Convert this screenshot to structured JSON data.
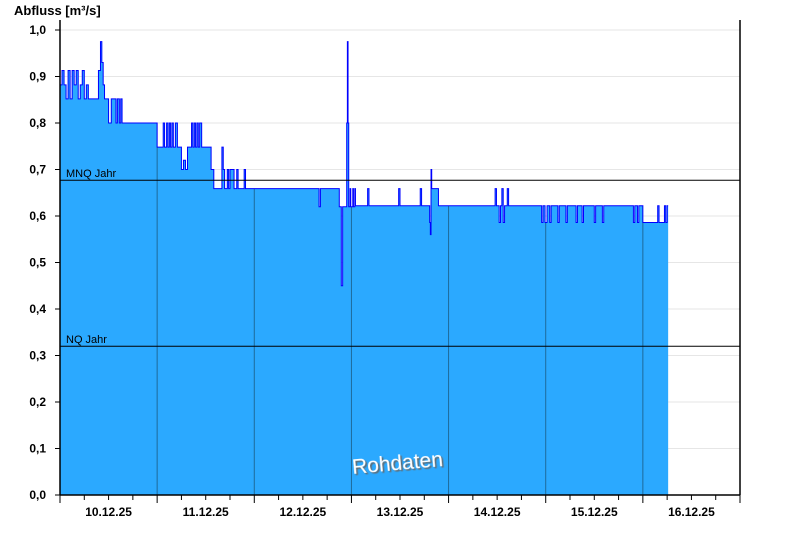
{
  "chart_data": {
    "type": "area",
    "ylabel": "Abfluss [m³/s]",
    "ylim": [
      0,
      1.0
    ],
    "yticks": [
      "0,0",
      "0,1",
      "0,2",
      "0,3",
      "0,4",
      "0,5",
      "0,6",
      "0,7",
      "0,8",
      "0,9",
      "1,0"
    ],
    "xlim": [
      "10.12.25 00:00",
      "17.12.25 00:00"
    ],
    "xticks": [
      "10.12.25",
      "11.12.25",
      "12.12.25",
      "13.12.25",
      "14.12.25",
      "15.12.25",
      "16.12.25"
    ],
    "grid": true,
    "step": true,
    "colors": {
      "fill": "#2ba9ff",
      "line": "#0000ff",
      "day_lines": "#1e6a9a",
      "grid": "#e6e6e6"
    },
    "reference_lines": [
      {
        "label": "MNQ Jahr",
        "value": 0.677
      },
      {
        "label": "NQ Jahr",
        "value": 0.32
      }
    ],
    "watermark": "Rohdaten",
    "end": "16.12.25 06:15",
    "points": [
      [
        "10.12.25 00:00",
        0.882
      ],
      [
        "10.12.25 00:30",
        0.913
      ],
      [
        "10.12.25 01:00",
        0.882
      ],
      [
        "10.12.25 01:30",
        0.852
      ],
      [
        "10.12.25 02:00",
        0.913
      ],
      [
        "10.12.25 02:30",
        0.852
      ],
      [
        "10.12.25 03:00",
        0.913
      ],
      [
        "10.12.25 03:30",
        0.882
      ],
      [
        "10.12.25 04:00",
        0.913
      ],
      [
        "10.12.25 04:30",
        0.852
      ],
      [
        "10.12.25 05:00",
        0.882
      ],
      [
        "10.12.25 05:30",
        0.913
      ],
      [
        "10.12.25 06:00",
        0.852
      ],
      [
        "10.12.25 06:30",
        0.882
      ],
      [
        "10.12.25 07:00",
        0.852
      ],
      [
        "10.12.25 09:30",
        0.913
      ],
      [
        "10.12.25 10:00",
        0.975
      ],
      [
        "10.12.25 10:20",
        0.93
      ],
      [
        "10.12.25 10:40",
        0.882
      ],
      [
        "10.12.25 11:00",
        0.852
      ],
      [
        "10.12.25 12:00",
        0.8
      ],
      [
        "10.12.25 12:40",
        0.852
      ],
      [
        "10.12.25 13:50",
        0.8
      ],
      [
        "10.12.25 14:10",
        0.852
      ],
      [
        "10.12.25 14:40",
        0.8
      ],
      [
        "10.12.25 15:00",
        0.852
      ],
      [
        "10.12.25 15:20",
        0.8
      ],
      [
        "11.12.25 00:00",
        0.748
      ],
      [
        "11.12.25 01:30",
        0.8
      ],
      [
        "11.12.25 01:50",
        0.748
      ],
      [
        "11.12.25 02:20",
        0.8
      ],
      [
        "11.12.25 02:40",
        0.748
      ],
      [
        "11.12.25 03:00",
        0.8
      ],
      [
        "11.12.25 03:20",
        0.748
      ],
      [
        "11.12.25 03:40",
        0.8
      ],
      [
        "11.12.25 04:00",
        0.748
      ],
      [
        "11.12.25 04:30",
        0.8
      ],
      [
        "11.12.25 05:00",
        0.748
      ],
      [
        "11.12.25 06:00",
        0.7
      ],
      [
        "11.12.25 06:30",
        0.72
      ],
      [
        "11.12.25 07:00",
        0.7
      ],
      [
        "11.12.25 07:30",
        0.748
      ],
      [
        "11.12.25 08:30",
        0.8
      ],
      [
        "11.12.25 08:50",
        0.748
      ],
      [
        "11.12.25 09:10",
        0.8
      ],
      [
        "11.12.25 09:30",
        0.748
      ],
      [
        "11.12.25 09:50",
        0.8
      ],
      [
        "11.12.25 10:10",
        0.748
      ],
      [
        "11.12.25 10:30",
        0.8
      ],
      [
        "11.12.25 11:00",
        0.748
      ],
      [
        "11.12.25 13:20",
        0.7
      ],
      [
        "11.12.25 14:00",
        0.659
      ],
      [
        "11.12.25 16:00",
        0.748
      ],
      [
        "11.12.25 16:20",
        0.7
      ],
      [
        "11.12.25 16:40",
        0.659
      ],
      [
        "11.12.25 17:20",
        0.7
      ],
      [
        "11.12.25 17:40",
        0.659
      ],
      [
        "11.12.25 18:00",
        0.7
      ],
      [
        "11.12.25 19:00",
        0.659
      ],
      [
        "11.12.25 19:40",
        0.7
      ],
      [
        "11.12.25 20:00",
        0.659
      ],
      [
        "11.12.25 21:30",
        0.7
      ],
      [
        "11.12.25 21:50",
        0.659
      ],
      [
        "12.12.25 16:00",
        0.62
      ],
      [
        "12.12.25 16:20",
        0.659
      ],
      [
        "12.12.25 21:00",
        0.62
      ],
      [
        "12.12.25 21:30",
        0.45
      ],
      [
        "12.12.25 21:50",
        0.62
      ],
      [
        "12.12.25 22:50",
        0.8
      ],
      [
        "12.12.25 23:00",
        0.975
      ],
      [
        "12.12.25 23:10",
        0.8
      ],
      [
        "12.12.25 23:20",
        0.62
      ],
      [
        "12.12.25 23:40",
        0.659
      ],
      [
        "12.12.25 23:50",
        0.62
      ],
      [
        "13.12.25 00:20",
        0.659
      ],
      [
        "13.12.25 00:30",
        0.62
      ],
      [
        "13.12.25 00:50",
        0.659
      ],
      [
        "13.12.25 01:00",
        0.622
      ],
      [
        "13.12.25 04:00",
        0.659
      ],
      [
        "13.12.25 04:20",
        0.622
      ],
      [
        "13.12.25 11:40",
        0.659
      ],
      [
        "13.12.25 12:00",
        0.622
      ],
      [
        "13.12.25 17:00",
        0.659
      ],
      [
        "13.12.25 17:20",
        0.622
      ],
      [
        "13.12.25 19:20",
        0.586
      ],
      [
        "13.12.25 19:30",
        0.56
      ],
      [
        "13.12.25 19:40",
        0.7
      ],
      [
        "13.12.25 19:50",
        0.659
      ],
      [
        "13.12.25 21:30",
        0.622
      ],
      [
        "14.12.25 11:30",
        0.659
      ],
      [
        "14.12.25 11:50",
        0.622
      ],
      [
        "14.12.25 12:30",
        0.586
      ],
      [
        "14.12.25 12:50",
        0.622
      ],
      [
        "14.12.25 13:10",
        0.659
      ],
      [
        "14.12.25 13:30",
        0.586
      ],
      [
        "14.12.25 13:50",
        0.622
      ],
      [
        "14.12.25 14:30",
        0.659
      ],
      [
        "14.12.25 14:50",
        0.622
      ],
      [
        "14.12.25 23:00",
        0.586
      ],
      [
        "14.12.25 23:20",
        0.622
      ],
      [
        "14.12.25 23:50",
        0.586
      ],
      [
        "15.12.25 00:20",
        0.622
      ],
      [
        "15.12.25 01:00",
        0.586
      ],
      [
        "15.12.25 01:20",
        0.622
      ],
      [
        "15.12.25 03:00",
        0.586
      ],
      [
        "15.12.25 03:20",
        0.622
      ],
      [
        "15.12.25 05:00",
        0.586
      ],
      [
        "15.12.25 05:20",
        0.622
      ],
      [
        "15.12.25 07:30",
        0.586
      ],
      [
        "15.12.25 07:50",
        0.622
      ],
      [
        "15.12.25 09:00",
        0.586
      ],
      [
        "15.12.25 09:20",
        0.622
      ],
      [
        "15.12.25 12:00",
        0.586
      ],
      [
        "15.12.25 12:20",
        0.622
      ],
      [
        "15.12.25 14:00",
        0.586
      ],
      [
        "15.12.25 14:20",
        0.622
      ],
      [
        "15.12.25 21:40",
        0.586
      ],
      [
        "15.12.25 22:00",
        0.622
      ],
      [
        "15.12.25 22:40",
        0.586
      ],
      [
        "15.12.25 23:00",
        0.622
      ],
      [
        "16.12.25 00:00",
        0.586
      ],
      [
        "16.12.25 03:40",
        0.622
      ],
      [
        "16.12.25 04:00",
        0.586
      ],
      [
        "16.12.25 05:20",
        0.622
      ],
      [
        "16.12.25 05:40",
        0.586
      ],
      [
        "16.12.25 06:00",
        0.622
      ]
    ]
  }
}
